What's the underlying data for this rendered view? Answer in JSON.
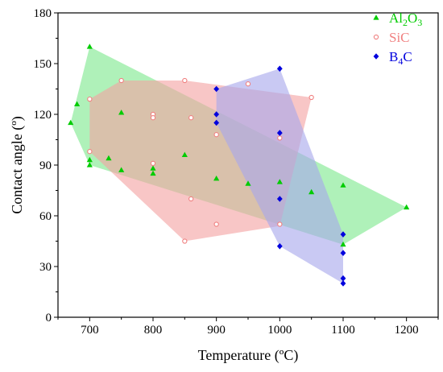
{
  "chart_data": {
    "type": "scatter",
    "title": "",
    "xlabel": "Temperature (ºC)",
    "ylabel": "Contact angle (º)",
    "xlim": [
      650,
      1250
    ],
    "ylim": [
      0,
      180
    ],
    "xticks": [
      700,
      800,
      900,
      1000,
      1100,
      1200
    ],
    "yticks": [
      0,
      30,
      60,
      90,
      120,
      150,
      180
    ],
    "grid": false,
    "legend_position": "top-right",
    "series": [
      {
        "name": "Al2O3",
        "name_main": "Al",
        "name_sub1": "2",
        "name_mid": "O",
        "name_sub2": "3",
        "marker": "triangle",
        "color": "#00cc00",
        "hull_color": "#7ee88e",
        "points": [
          [
            670,
            115
          ],
          [
            680,
            126
          ],
          [
            700,
            160
          ],
          [
            700,
            93
          ],
          [
            700,
            90
          ],
          [
            730,
            94
          ],
          [
            750,
            87
          ],
          [
            750,
            121
          ],
          [
            800,
            88
          ],
          [
            800,
            85
          ],
          [
            850,
            96
          ],
          [
            900,
            82
          ],
          [
            950,
            79
          ],
          [
            1000,
            80
          ],
          [
            1050,
            74
          ],
          [
            1100,
            78
          ],
          [
            1100,
            43
          ],
          [
            1200,
            65
          ]
        ],
        "hull": [
          [
            700,
            160
          ],
          [
            1200,
            65
          ],
          [
            1100,
            43
          ],
          [
            700,
            90
          ],
          [
            670,
            115
          ]
        ]
      },
      {
        "name": "SiC",
        "marker": "circle-open",
        "color": "#f08080",
        "hull_color": "#f3a3a3",
        "points": [
          [
            700,
            129
          ],
          [
            700,
            98
          ],
          [
            750,
            140
          ],
          [
            800,
            120
          ],
          [
            800,
            118
          ],
          [
            800,
            91
          ],
          [
            850,
            140
          ],
          [
            860,
            118
          ],
          [
            860,
            70
          ],
          [
            850,
            45
          ],
          [
            900,
            108
          ],
          [
            900,
            55
          ],
          [
            950,
            138
          ],
          [
            1000,
            106
          ],
          [
            1000,
            55
          ],
          [
            1050,
            130
          ]
        ],
        "hull": [
          [
            700,
            129
          ],
          [
            750,
            140
          ],
          [
            850,
            140
          ],
          [
            1050,
            130
          ],
          [
            1000,
            54
          ],
          [
            850,
            45
          ],
          [
            700,
            98
          ]
        ]
      },
      {
        "name": "B4C",
        "name_main": "B",
        "name_sub1": "4",
        "name_mid": "C",
        "marker": "diamond",
        "color": "#0000dd",
        "hull_color": "#a8a8ec",
        "points": [
          [
            900,
            135
          ],
          [
            900,
            120
          ],
          [
            900,
            115
          ],
          [
            1000,
            147
          ],
          [
            1000,
            109
          ],
          [
            1000,
            70
          ],
          [
            1000,
            42
          ],
          [
            1100,
            49
          ],
          [
            1100,
            38
          ],
          [
            1100,
            23
          ],
          [
            1100,
            20
          ]
        ],
        "hull": [
          [
            900,
            135
          ],
          [
            1000,
            147
          ],
          [
            1100,
            49
          ],
          [
            1100,
            20
          ],
          [
            1000,
            42
          ],
          [
            900,
            115
          ]
        ]
      }
    ]
  }
}
